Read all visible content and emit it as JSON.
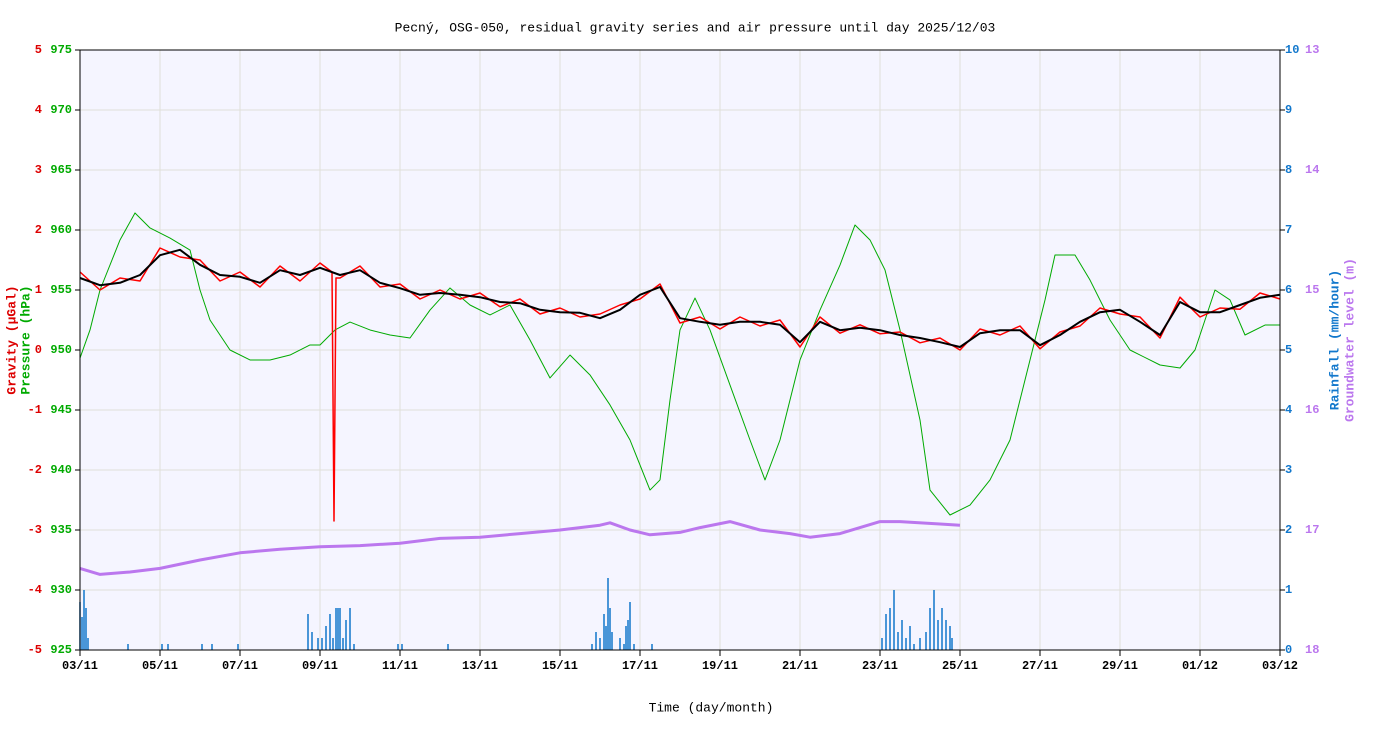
{
  "chart_data": {
    "type": "line",
    "title": "Pecný, OSG-050, residual gravity series and air pressure until day 2025/12/03",
    "x_label": "Time (day/month)",
    "xlim": [
      0,
      30
    ],
    "xticks": [
      {
        "value": 0,
        "label": "03/11"
      },
      {
        "value": 2,
        "label": "05/11"
      },
      {
        "value": 4,
        "label": "07/11"
      },
      {
        "value": 6,
        "label": "09/11"
      },
      {
        "value": 8,
        "label": "11/11"
      },
      {
        "value": 10,
        "label": "13/11"
      },
      {
        "value": 12,
        "label": "15/11"
      },
      {
        "value": 14,
        "label": "17/11"
      },
      {
        "value": 16,
        "label": "19/11"
      },
      {
        "value": 18,
        "label": "21/11"
      },
      {
        "value": 20,
        "label": "23/11"
      },
      {
        "value": 22,
        "label": "25/11"
      },
      {
        "value": 24,
        "label": "27/11"
      },
      {
        "value": 26,
        "label": "29/11"
      },
      {
        "value": 28,
        "label": "01/12"
      },
      {
        "value": 30,
        "label": "03/12"
      }
    ],
    "grid": true,
    "axes": {
      "gravity": {
        "label": "Gravity (µGal)",
        "color": "#dd0000",
        "side": "left",
        "lim": [
          -5,
          5
        ],
        "ticks": [
          -5,
          -4,
          -3,
          -2,
          -1,
          0,
          1,
          2,
          3,
          4,
          5
        ]
      },
      "pressure": {
        "label": "Pressure (hPa)",
        "color": "#00aa00",
        "side": "left",
        "lim": [
          925,
          975
        ],
        "ticks": [
          925,
          930,
          935,
          940,
          945,
          950,
          955,
          960,
          965,
          970,
          975
        ]
      },
      "rainfall": {
        "label": "Rainfall (mm/hour)",
        "color": "#1177cc",
        "side": "right",
        "lim": [
          0,
          10
        ],
        "ticks": [
          0,
          1,
          2,
          3,
          4,
          5,
          6,
          7,
          8,
          9,
          10
        ]
      },
      "groundwater": {
        "label": "Groundwater level (m)",
        "color": "#bb77ee",
        "side": "right",
        "lim": [
          18,
          13
        ],
        "ticks": [
          18,
          17,
          16,
          15,
          14,
          13
        ]
      }
    },
    "series": [
      {
        "kind": "bar",
        "axis": "rainfall",
        "color": "#1177cc",
        "x": [
          0,
          0.05,
          0.1,
          0.15,
          0.2,
          1.2,
          2.05,
          2.2,
          3.05,
          3.3,
          3.95,
          5.7,
          5.8,
          5.95,
          6.05,
          6.15,
          6.25,
          6.325,
          6.4,
          6.45,
          6.5,
          6.575,
          6.65,
          6.75,
          6.85,
          7.95,
          8.05,
          9.2,
          12.8,
          12.9,
          13,
          13.1,
          13.15,
          13.2,
          13.25,
          13.3,
          13.5,
          13.6,
          13.65,
          13.7,
          13.75,
          13.85,
          14.3,
          20.05,
          20.15,
          20.25,
          20.35,
          20.45,
          20.55,
          20.65,
          20.75,
          20.85,
          21,
          21.15,
          21.25,
          21.35,
          21.45,
          21.55,
          21.65,
          21.75,
          21.8
        ],
        "values": [
          0.8,
          0.55,
          1.0,
          0.7,
          0.2,
          0.1,
          0.1,
          0.1,
          0.1,
          0.1,
          0.1,
          0.6,
          0.3,
          0.2,
          0.2,
          0.4,
          0.6,
          0.2,
          0.7,
          0.7,
          0.7,
          0.2,
          0.5,
          0.7,
          0.1,
          0.1,
          0.1,
          0.1,
          0.1,
          0.3,
          0.2,
          0.6,
          0.4,
          1.2,
          0.7,
          0.3,
          0.2,
          0.1,
          0.4,
          0.5,
          0.8,
          0.1,
          0.1,
          0.2,
          0.6,
          0.7,
          1.0,
          0.3,
          0.5,
          0.2,
          0.4,
          0.1,
          0.2,
          0.3,
          0.7,
          1.0,
          0.5,
          0.7,
          0.5,
          0.4,
          0.2
        ]
      },
      {
        "kind": "line",
        "axis": "groundwater",
        "color": "#bb77ee",
        "width": 3,
        "x": [
          0,
          0.5,
          1.25,
          2,
          3,
          4,
          5,
          6,
          7,
          8,
          9,
          10,
          11,
          12,
          13,
          13.25,
          13.75,
          14.25,
          15,
          15.5,
          16.25,
          17,
          17.75,
          18.25,
          19,
          19.5,
          20,
          20.5,
          21.5,
          22
        ],
        "values": [
          17.32,
          17.37,
          17.35,
          17.32,
          17.25,
          17.19,
          17.16,
          17.14,
          17.13,
          17.11,
          17.07,
          17.06,
          17.03,
          17.0,
          16.96,
          16.94,
          17.0,
          17.04,
          17.02,
          16.98,
          16.93,
          17.0,
          17.03,
          17.06,
          17.03,
          16.98,
          16.93,
          16.93,
          16.95,
          16.96
        ]
      },
      {
        "kind": "line",
        "axis": "pressure",
        "color": "#00aa00",
        "width": 1,
        "x": [
          0,
          0.25,
          0.5,
          1,
          1.375,
          1.75,
          2.25,
          2.75,
          3,
          3.25,
          3.75,
          4.25,
          4.75,
          5.25,
          5.75,
          6,
          6.375,
          6.75,
          7.25,
          7.75,
          8.25,
          8.75,
          9.25,
          9.75,
          10.25,
          10.75,
          11.25,
          11.75,
          12.25,
          12.75,
          13.25,
          13.75,
          14.25,
          14.5,
          14.75,
          15,
          15.375,
          15.75,
          16.25,
          16.75,
          17.125,
          17.5,
          18,
          18.5,
          19,
          19.375,
          19.75,
          20.125,
          20.5,
          21,
          21.25,
          21.75,
          22.25,
          22.75,
          23.25,
          23.75,
          24.125,
          24.375,
          24.875,
          25.25,
          25.75,
          26.25,
          27,
          27.5,
          27.875,
          28.375,
          28.75,
          29.125,
          29.625,
          30
        ],
        "values": [
          949.33,
          951.67,
          955,
          959.17,
          961.42,
          960.17,
          959.33,
          958.33,
          955,
          952.5,
          950,
          949.17,
          949.17,
          949.58,
          950.42,
          950.42,
          951.67,
          952.33,
          951.67,
          951.25,
          951,
          953.33,
          955.17,
          953.75,
          952.92,
          953.75,
          950.83,
          947.67,
          949.58,
          947.92,
          945.42,
          942.5,
          938.33,
          939.17,
          945.83,
          951.67,
          954.33,
          951.67,
          947.08,
          942.5,
          939.17,
          942.5,
          949.17,
          953.33,
          957.08,
          960.42,
          959.17,
          956.67,
          951.67,
          944.17,
          938.33,
          936.25,
          937.08,
          939.17,
          942.5,
          949.17,
          954.17,
          957.92,
          957.92,
          955.83,
          952.5,
          950,
          948.75,
          948.5,
          950,
          955,
          954.17,
          951.25,
          952.08,
          952.08
        ]
      },
      {
        "kind": "line",
        "axis": "gravity",
        "color": "#ff0000",
        "width": 1.5,
        "x": [
          0,
          0.5,
          1,
          1.5,
          2,
          2.5,
          3,
          3.5,
          4,
          4.5,
          5,
          5.5,
          6,
          6.3,
          6.35,
          6.4,
          6.5,
          7,
          7.5,
          8,
          8.5,
          9,
          9.5,
          10,
          10.5,
          11,
          11.5,
          12,
          12.5,
          13,
          13.5,
          14,
          14.5,
          15,
          15.5,
          16,
          16.5,
          17,
          17.5,
          18,
          18.5,
          19,
          19.5,
          20,
          20.5,
          21,
          21.5,
          22,
          22.5,
          23,
          23.5,
          24,
          24.5,
          25,
          25.5,
          26,
          26.5,
          27,
          27.5,
          28,
          28.5,
          29,
          29.5,
          30
        ],
        "values": [
          1.3,
          1.0,
          1.2,
          1.15,
          1.7,
          1.55,
          1.5,
          1.15,
          1.3,
          1.05,
          1.4,
          1.15,
          1.45,
          1.3,
          -2.85,
          1.2,
          1.2,
          1.4,
          1.05,
          1.1,
          0.85,
          1.0,
          0.85,
          0.95,
          0.72,
          0.85,
          0.6,
          0.7,
          0.55,
          0.6,
          0.75,
          0.85,
          1.1,
          0.45,
          0.55,
          0.35,
          0.55,
          0.4,
          0.5,
          0.05,
          0.55,
          0.28,
          0.42,
          0.27,
          0.3,
          0.12,
          0.2,
          0.0,
          0.35,
          0.25,
          0.4,
          0.02,
          0.3,
          0.4,
          0.7,
          0.6,
          0.55,
          0.2,
          0.88,
          0.55,
          0.7,
          0.68,
          0.95,
          0.85
        ]
      },
      {
        "kind": "line",
        "axis": "gravity",
        "color": "#000000",
        "width": 2,
        "x": [
          0,
          0.5,
          1,
          1.5,
          2,
          2.5,
          3,
          3.5,
          4,
          4.5,
          5,
          5.5,
          6,
          6.5,
          7,
          7.5,
          8,
          8.5,
          9,
          9.5,
          10,
          10.5,
          11,
          11.5,
          12,
          12.5,
          13,
          13.5,
          14,
          14.5,
          15,
          15.5,
          16,
          16.5,
          17,
          17.5,
          18,
          18.5,
          19,
          19.5,
          20,
          20.5,
          21,
          21.5,
          22,
          22.5,
          23,
          23.5,
          24,
          24.5,
          25,
          25.5,
          26,
          26.5,
          27,
          27.5,
          28,
          28.5,
          29,
          29.5,
          30
        ],
        "values": [
          1.2,
          1.08,
          1.12,
          1.25,
          1.58,
          1.67,
          1.42,
          1.25,
          1.22,
          1.12,
          1.33,
          1.25,
          1.37,
          1.25,
          1.33,
          1.12,
          1.03,
          0.92,
          0.95,
          0.92,
          0.88,
          0.8,
          0.78,
          0.67,
          0.63,
          0.62,
          0.53,
          0.67,
          0.92,
          1.05,
          0.53,
          0.47,
          0.42,
          0.47,
          0.47,
          0.42,
          0.13,
          0.47,
          0.33,
          0.37,
          0.33,
          0.25,
          0.2,
          0.13,
          0.05,
          0.28,
          0.33,
          0.33,
          0.08,
          0.25,
          0.47,
          0.63,
          0.67,
          0.47,
          0.25,
          0.8,
          0.63,
          0.63,
          0.75,
          0.87,
          0.92
        ]
      }
    ]
  }
}
